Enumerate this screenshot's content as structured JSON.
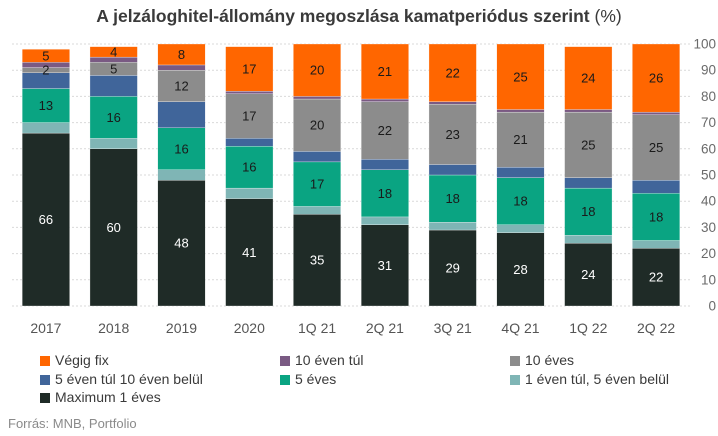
{
  "title": "A jelzáloghitel-állomány megoszlása kamatperiódus szerint",
  "title_unit": "(%)",
  "source": "Forrás: MNB, Portfolio",
  "chart_data": {
    "type": "bar",
    "stacked": true,
    "categories": [
      "2017",
      "2018",
      "2019",
      "2020",
      "1Q 21",
      "2Q 21",
      "3Q 21",
      "4Q 21",
      "1Q 22",
      "2Q 22"
    ],
    "ylim": [
      0,
      100
    ],
    "yticks": [
      0,
      10,
      20,
      30,
      40,
      50,
      60,
      70,
      80,
      90,
      100
    ],
    "y_axis_side": "right",
    "grid": true,
    "legend_position": "bottom",
    "series": [
      {
        "name": "Maximum 1 éves",
        "color": "#1f2b27",
        "label_color": "#ffffff",
        "values": [
          66,
          60,
          48,
          41,
          35,
          31,
          29,
          28,
          24,
          22
        ],
        "labels": [
          "66",
          "60",
          "48",
          "41",
          "35",
          "31",
          "29",
          "28",
          "24",
          "22"
        ]
      },
      {
        "name": "1 éven túl, 5 éven belül",
        "color": "#7fb5b5",
        "label_color": "#3a3a3a",
        "values": [
          4,
          4,
          4,
          4,
          3,
          3,
          3,
          3,
          3,
          3
        ],
        "labels": [
          "",
          "",
          "",
          "",
          "",
          "",
          "",
          "",
          "",
          ""
        ]
      },
      {
        "name": "5 éves",
        "color": "#0aa482",
        "label_color": "#1a1a1a",
        "values": [
          13,
          16,
          16,
          16,
          17,
          18,
          18,
          18,
          18,
          18
        ],
        "labels": [
          "13",
          "16",
          "16",
          "16",
          "17",
          "18",
          "18",
          "18",
          "18",
          "18"
        ]
      },
      {
        "name": "5 éven túl 10 éven belül",
        "color": "#40659a",
        "label_color": "#ffffff",
        "values": [
          6,
          8,
          10,
          3,
          4,
          4,
          4,
          4,
          4,
          5
        ],
        "labels": [
          "",
          "",
          "",
          "",
          "",
          "",
          "",
          "",
          "",
          ""
        ]
      },
      {
        "name": "10 éves",
        "color": "#8c8c8c",
        "label_color": "#1a1a1a",
        "values": [
          2,
          5,
          12,
          17,
          20,
          22,
          23,
          21,
          25,
          25
        ],
        "labels": [
          "2",
          "5",
          "12",
          "17",
          "20",
          "22",
          "23",
          "21",
          "25",
          "25"
        ]
      },
      {
        "name": "10 éven túl",
        "color": "#7a5a83",
        "label_color": "#ffffff",
        "values": [
          2,
          2,
          2,
          1,
          1,
          1,
          1,
          1,
          1,
          1
        ],
        "labels": [
          "",
          "",
          "",
          "",
          "",
          "",
          "",
          "",
          "",
          ""
        ]
      },
      {
        "name": "Végig fix",
        "color": "#ff6600",
        "label_color": "#1a1a1a",
        "values": [
          5,
          4,
          8,
          17,
          20,
          21,
          22,
          25,
          24,
          26
        ],
        "labels": [
          "5",
          "4",
          "8",
          "17",
          "20",
          "21",
          "22",
          "25",
          "24",
          "26"
        ]
      }
    ],
    "legend_order": [
      "Végig fix",
      "10 éven túl",
      "10 éves",
      "5 éven túl 10 éven belül",
      "5 éves",
      "1 éven túl, 5 éven belül",
      "Maximum 1 éves"
    ]
  }
}
